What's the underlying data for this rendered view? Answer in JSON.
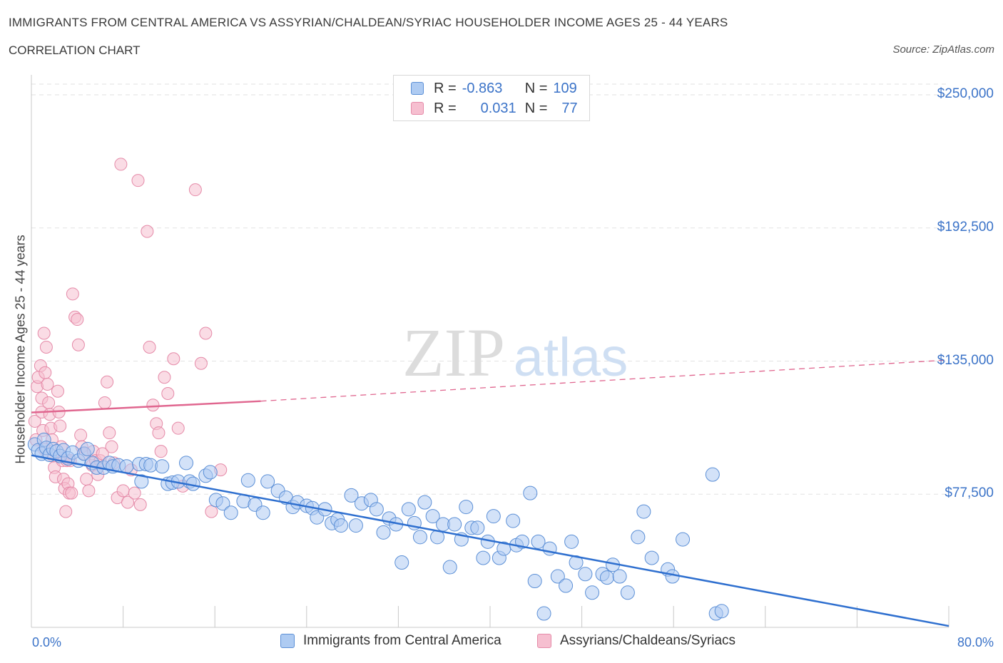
{
  "header": {
    "title": "IMMIGRANTS FROM CENTRAL AMERICA VS ASSYRIAN/CHALDEAN/SYRIAC HOUSEHOLDER INCOME AGES 25 - 44 YEARS",
    "subtitle": "CORRELATION CHART",
    "source": "Source: ZipAtlas.com"
  },
  "watermark": {
    "zip": "ZIP",
    "atlas": "atlas"
  },
  "stats_legend": {
    "row1": {
      "r_label": "R =",
      "r_value": "-0.863",
      "n_label": "N =",
      "n_value": "109"
    },
    "row2": {
      "r_label": "R =",
      "r_value": "0.031",
      "n_label": "N =",
      "n_value": "77"
    }
  },
  "colors": {
    "blue_fill": "#aecbf2",
    "blue_stroke": "#5b8fd6",
    "blue_line": "#2e6fcf",
    "pink_fill": "#f6bfd0",
    "pink_stroke": "#e58aa8",
    "pink_line": "#e0668f",
    "axis_text": "#3b73c8"
  },
  "chart_data": {
    "type": "scatter",
    "title": "IMMIGRANTS FROM CENTRAL AMERICA VS ASSYRIAN/CHALDEAN/SYRIAC HOUSEHOLDER INCOME AGES 25 - 44 YEARS",
    "xlabel": "",
    "ylabel": "Householder Income Ages 25 - 44 years",
    "xlim": [
      0,
      80
    ],
    "ylim": [
      20000,
      255000
    ],
    "x_tick_labels": [
      "0.0%",
      "80.0%"
    ],
    "y_ticks": [
      77500,
      135000,
      192500,
      250000
    ],
    "y_tick_labels": [
      "$77,500",
      "$135,000",
      "$192,500",
      "$250,000"
    ],
    "grid": true,
    "legend_position": "bottom",
    "series": [
      {
        "name": "Immigrants from Central America",
        "color": "#aecbf2",
        "trend": {
          "x": [
            0,
            80
          ],
          "y": [
            94300,
            20600
          ],
          "style": "solid"
        },
        "points": [
          [
            0.3,
            99000
          ],
          [
            0.6,
            96500
          ],
          [
            0.9,
            95000
          ],
          [
            1.1,
            101000
          ],
          [
            1.3,
            97500
          ],
          [
            1.6,
            94500
          ],
          [
            1.9,
            97000
          ],
          [
            2.2,
            96000
          ],
          [
            2.5,
            94000
          ],
          [
            2.8,
            96500
          ],
          [
            3.2,
            93000
          ],
          [
            3.6,
            95500
          ],
          [
            4.1,
            92000
          ],
          [
            4.6,
            95000
          ],
          [
            4.9,
            97000
          ],
          [
            5.3,
            91000
          ],
          [
            5.7,
            89000
          ],
          [
            6.3,
            89000
          ],
          [
            6.8,
            91000
          ],
          [
            7.1,
            89500
          ],
          [
            7.6,
            90000
          ],
          [
            8.3,
            89500
          ],
          [
            9.4,
            90500
          ],
          [
            9.6,
            83000
          ],
          [
            10.0,
            90500
          ],
          [
            10.4,
            90000
          ],
          [
            11.4,
            89500
          ],
          [
            11.9,
            82000
          ],
          [
            12.3,
            82500
          ],
          [
            12.8,
            83000
          ],
          [
            13.5,
            91000
          ],
          [
            13.8,
            83000
          ],
          [
            14.1,
            82000
          ],
          [
            15.2,
            85500
          ],
          [
            15.6,
            87000
          ],
          [
            16.1,
            75000
          ],
          [
            16.7,
            73500
          ],
          [
            17.4,
            69500
          ],
          [
            18.5,
            74500
          ],
          [
            18.9,
            83500
          ],
          [
            19.5,
            73000
          ],
          [
            20.2,
            69500
          ],
          [
            20.6,
            83000
          ],
          [
            21.5,
            79000
          ],
          [
            22.2,
            76000
          ],
          [
            22.8,
            72000
          ],
          [
            23.2,
            74000
          ],
          [
            24.0,
            72500
          ],
          [
            24.5,
            71500
          ],
          [
            24.9,
            67500
          ],
          [
            25.6,
            71000
          ],
          [
            26.2,
            65000
          ],
          [
            26.7,
            66500
          ],
          [
            27.0,
            64000
          ],
          [
            27.9,
            77000
          ],
          [
            28.3,
            64000
          ],
          [
            28.8,
            73500
          ],
          [
            29.6,
            75000
          ],
          [
            30.1,
            71000
          ],
          [
            30.7,
            61000
          ],
          [
            31.2,
            67000
          ],
          [
            31.8,
            64500
          ],
          [
            32.3,
            48000
          ],
          [
            32.9,
            71000
          ],
          [
            33.4,
            65000
          ],
          [
            33.9,
            59000
          ],
          [
            34.3,
            74000
          ],
          [
            35.0,
            68000
          ],
          [
            35.4,
            59000
          ],
          [
            35.9,
            64500
          ],
          [
            36.5,
            46000
          ],
          [
            36.9,
            64500
          ],
          [
            37.5,
            58000
          ],
          [
            37.9,
            72000
          ],
          [
            38.4,
            63000
          ],
          [
            38.9,
            63000
          ],
          [
            39.4,
            50000
          ],
          [
            39.8,
            57000
          ],
          [
            40.3,
            68000
          ],
          [
            40.8,
            50000
          ],
          [
            41.2,
            54000
          ],
          [
            42.0,
            66000
          ],
          [
            42.3,
            55500
          ],
          [
            42.8,
            57000
          ],
          [
            43.5,
            78000
          ],
          [
            43.9,
            40000
          ],
          [
            44.2,
            57000
          ],
          [
            44.7,
            26000
          ],
          [
            45.2,
            54000
          ],
          [
            45.9,
            42000
          ],
          [
            46.6,
            38000
          ],
          [
            47.1,
            57000
          ],
          [
            47.5,
            48000
          ],
          [
            48.3,
            43000
          ],
          [
            48.9,
            35000
          ],
          [
            49.8,
            43000
          ],
          [
            50.2,
            41500
          ],
          [
            50.7,
            47000
          ],
          [
            51.3,
            42000
          ],
          [
            52.0,
            35000
          ],
          [
            52.9,
            59000
          ],
          [
            53.4,
            70000
          ],
          [
            54.1,
            50000
          ],
          [
            55.5,
            45000
          ],
          [
            55.9,
            42000
          ],
          [
            56.8,
            58000
          ],
          [
            59.4,
            86000
          ],
          [
            59.7,
            26000
          ],
          [
            60.2,
            27000
          ]
        ]
      },
      {
        "name": "Assyrians/Chaldeans/Syriacs",
        "color": "#f6bfd0",
        "trend": {
          "x": [
            0,
            20,
            80
          ],
          "y": [
            112800,
            117700,
            135500
          ],
          "style": "solid-then-dashed"
        },
        "points": [
          [
            0.3,
            109000
          ],
          [
            0.4,
            101000
          ],
          [
            0.5,
            124000
          ],
          [
            0.6,
            128000
          ],
          [
            0.8,
            133000
          ],
          [
            0.9,
            119000
          ],
          [
            0.9,
            113000
          ],
          [
            1.0,
            105000
          ],
          [
            1.1,
            97000
          ],
          [
            1.1,
            147000
          ],
          [
            1.2,
            130000
          ],
          [
            1.3,
            141000
          ],
          [
            1.4,
            125000
          ],
          [
            1.5,
            117000
          ],
          [
            1.6,
            112000
          ],
          [
            1.7,
            106000
          ],
          [
            1.8,
            101000
          ],
          [
            1.9,
            94000
          ],
          [
            2.0,
            89000
          ],
          [
            2.1,
            85000
          ],
          [
            2.3,
            122000
          ],
          [
            2.4,
            113000
          ],
          [
            2.5,
            107000
          ],
          [
            2.6,
            98000
          ],
          [
            2.7,
            92000
          ],
          [
            2.8,
            84000
          ],
          [
            2.9,
            80000
          ],
          [
            3.0,
            70000
          ],
          [
            3.1,
            92000
          ],
          [
            3.2,
            82000
          ],
          [
            3.3,
            78000
          ],
          [
            3.4,
            92000
          ],
          [
            3.5,
            78000
          ],
          [
            3.6,
            164000
          ],
          [
            3.8,
            154000
          ],
          [
            4.0,
            153000
          ],
          [
            4.1,
            142000
          ],
          [
            4.3,
            103000
          ],
          [
            4.4,
            98000
          ],
          [
            4.6,
            95000
          ],
          [
            4.8,
            84000
          ],
          [
            5.0,
            79000
          ],
          [
            5.3,
            90000
          ],
          [
            5.4,
            96000
          ],
          [
            5.6,
            92000
          ],
          [
            5.8,
            86000
          ],
          [
            6.0,
            92000
          ],
          [
            6.2,
            95000
          ],
          [
            6.4,
            117000
          ],
          [
            6.6,
            126000
          ],
          [
            6.8,
            104000
          ],
          [
            7.0,
            98000
          ],
          [
            7.2,
            91000
          ],
          [
            7.5,
            76000
          ],
          [
            7.8,
            220000
          ],
          [
            8.0,
            79000
          ],
          [
            8.4,
            74000
          ],
          [
            8.7,
            88000
          ],
          [
            9.0,
            78000
          ],
          [
            9.3,
            213000
          ],
          [
            9.5,
            73000
          ],
          [
            10.1,
            191000
          ],
          [
            10.3,
            141000
          ],
          [
            10.6,
            116000
          ],
          [
            10.9,
            108000
          ],
          [
            11.1,
            104000
          ],
          [
            11.3,
            96000
          ],
          [
            11.6,
            128000
          ],
          [
            11.9,
            121000
          ],
          [
            12.4,
            136000
          ],
          [
            12.8,
            106000
          ],
          [
            13.2,
            81000
          ],
          [
            14.3,
            209000
          ],
          [
            14.8,
            134000
          ],
          [
            15.2,
            147000
          ],
          [
            15.7,
            70000
          ],
          [
            16.5,
            88000
          ]
        ]
      }
    ]
  },
  "bottom_legend": {
    "item1": "Immigrants from Central America",
    "item2": "Assyrians/Chaldeans/Syriacs"
  }
}
